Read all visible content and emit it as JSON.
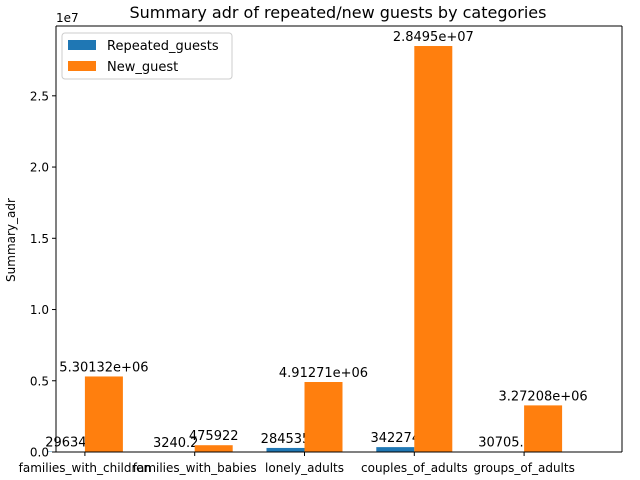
{
  "chart_data": {
    "type": "bar",
    "title": "Summary adr of repeated/new guests by categories",
    "xlabel": "",
    "ylabel": "Summary_adr",
    "y_offset_label": "1e7",
    "ylim": [
      0,
      29900000.0
    ],
    "yticks": [
      0,
      5000000,
      10000000,
      15000000,
      20000000,
      25000000
    ],
    "ytick_labels": [
      "0.0",
      "0.5",
      "1.0",
      "1.5",
      "2.0",
      "2.5"
    ],
    "categories": [
      "families_with_children",
      "families_with_babies",
      "lonely_adults",
      "couples_of_adults",
      "groups_of_adults"
    ],
    "series": [
      {
        "name": "Repeated_guests",
        "color": "#1f77b4",
        "values": [
          29634,
          3240.2,
          284535,
          342274,
          30705.2
        ],
        "labels": [
          "29634",
          "3240.2",
          "284535",
          "342274",
          "30705.2"
        ]
      },
      {
        "name": "New_guest",
        "color": "#ff7f0e",
        "values": [
          5301320,
          475922,
          4912710,
          28495000,
          3272080
        ],
        "labels": [
          "5.30132e+06",
          "475922",
          "4.91271e+06",
          "2.8495e+07",
          "3.27208e+06"
        ]
      }
    ],
    "legend_position": "top-left",
    "grid": false
  }
}
